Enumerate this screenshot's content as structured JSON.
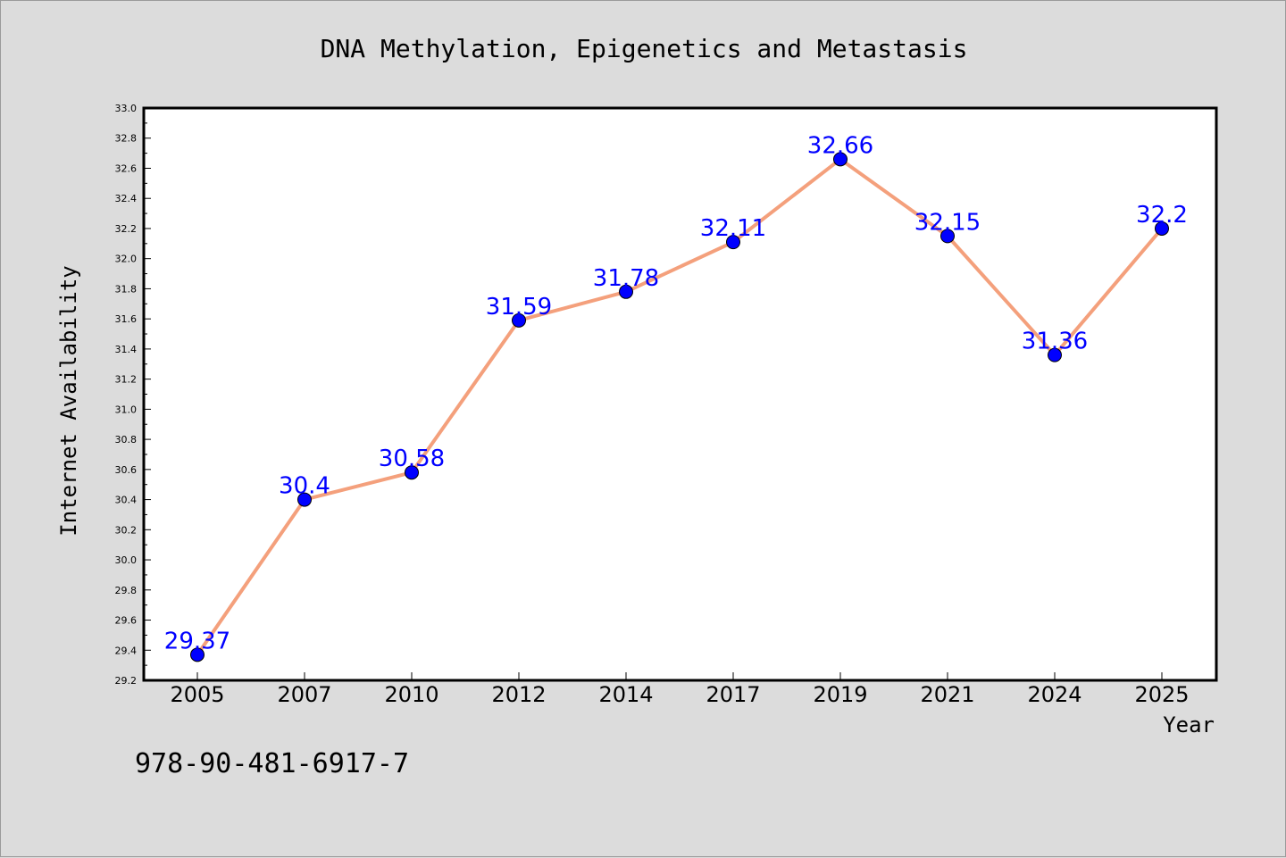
{
  "chart_data": {
    "type": "line",
    "title": "DNA Methylation, Epigenetics and Metastasis",
    "xlabel": "Year",
    "ylabel": "Internet Availability",
    "categories": [
      "2005",
      "2007",
      "2010",
      "2012",
      "2014",
      "2017",
      "2019",
      "2021",
      "2024",
      "2025"
    ],
    "series": [
      {
        "values": [
          29.37,
          30.4,
          30.58,
          31.59,
          31.78,
          32.11,
          32.66,
          32.15,
          31.36,
          32.2
        ],
        "labels": [
          "29.37",
          "30.4",
          "30.58",
          "31.59",
          "31.78",
          "32.11",
          "32.66",
          "32.15",
          "31.36",
          "32.2"
        ],
        "line_color": "#f4a07c",
        "marker_color": "#0000ff"
      }
    ],
    "ylim": [
      29.2,
      33.0
    ],
    "yticks": [
      "29.2",
      "29.4",
      "29.6",
      "29.8",
      "30.0",
      "30.2",
      "30.4",
      "30.6",
      "30.8",
      "31.0",
      "31.2",
      "31.4",
      "31.6",
      "31.8",
      "32.0",
      "32.2",
      "32.4",
      "32.6",
      "32.8",
      "33.0"
    ],
    "grid": false,
    "legend": "none"
  },
  "annotation": "978-90-481-6917-7",
  "colors": {
    "background": "#dcdcdc",
    "plot_background": "#ffffff",
    "axis": "#000000",
    "data_label": "#0000ff"
  }
}
